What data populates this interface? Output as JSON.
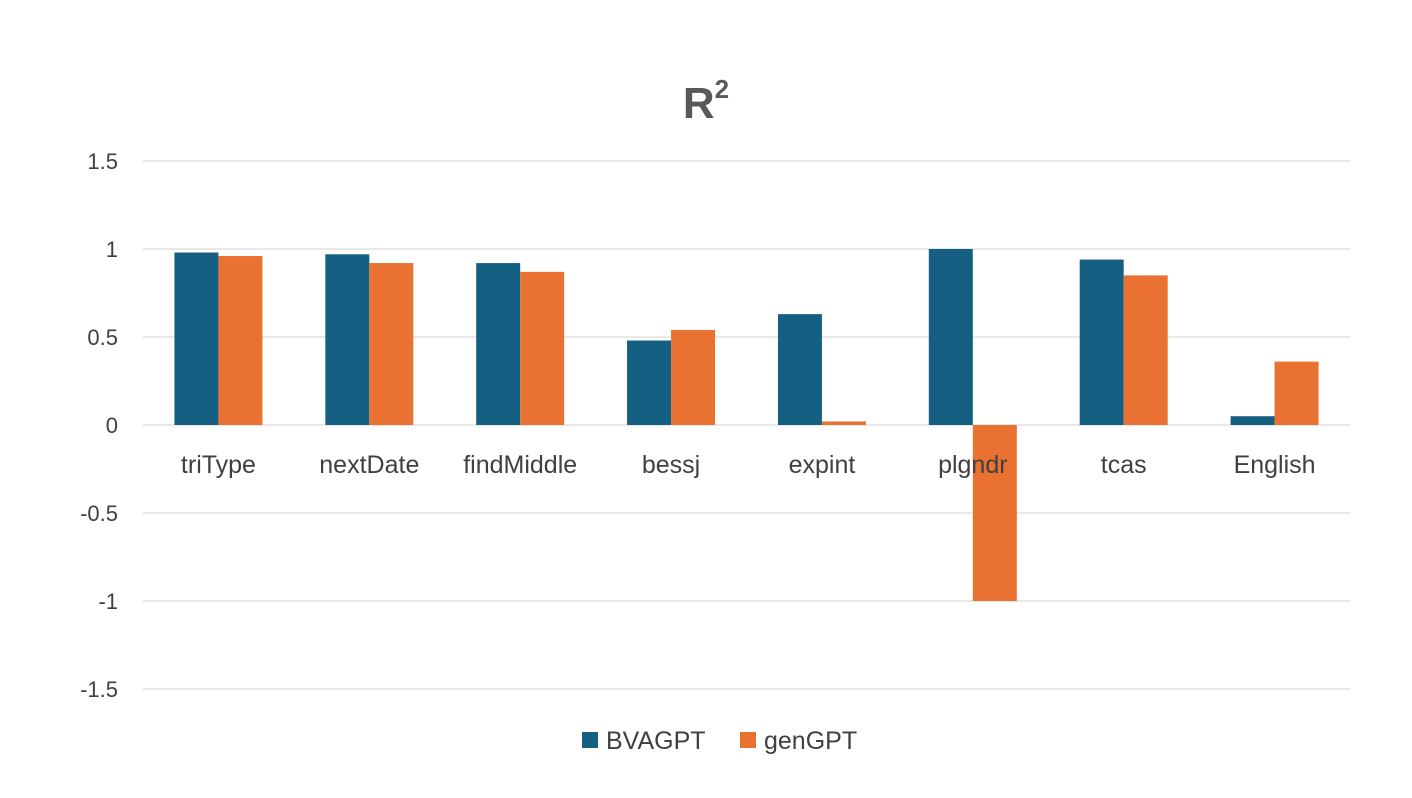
{
  "chart_data": {
    "type": "bar",
    "title": "R",
    "title_superscript": "2",
    "xlabel": "",
    "ylabel": "",
    "ylim": [
      -1.5,
      1.5
    ],
    "yticks": [
      1.5,
      1,
      0.5,
      0,
      -0.5,
      -1,
      -1.5
    ],
    "grid": true,
    "legend_position": "bottom",
    "categories": [
      "triType",
      "nextDate",
      "findMiddle",
      "bessj",
      "expint",
      "plgndr",
      "tcas",
      "English"
    ],
    "series": [
      {
        "name": "BVAGPT",
        "color": "#156082",
        "values": [
          0.98,
          0.97,
          0.92,
          0.48,
          0.63,
          1.0,
          0.94,
          0.05
        ]
      },
      {
        "name": "genGPT",
        "color": "#E97132",
        "values": [
          0.96,
          0.92,
          0.87,
          0.54,
          0.02,
          -1.0,
          0.85,
          0.36
        ]
      }
    ]
  }
}
